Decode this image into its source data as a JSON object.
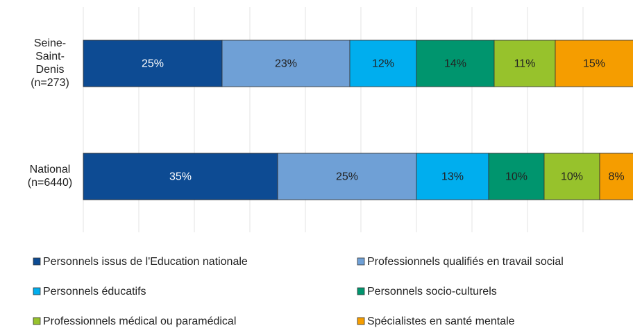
{
  "chart_data": {
    "type": "stacked_bar_horizontal",
    "categories": [
      "Seine-Saint-Denis (n=273)",
      "National (n=6440)"
    ],
    "series": [
      {
        "name": "Personnels issus de l'Education nationale",
        "color": "#0d4b93",
        "values": [
          25,
          35
        ],
        "value_labels": [
          "25%",
          "35%"
        ]
      },
      {
        "name": "Professionnels qualifiés en travail social",
        "color": "#6fa0d6",
        "values": [
          23,
          25
        ],
        "value_labels": [
          "23%",
          "25%"
        ]
      },
      {
        "name": "Personnels éducatifs",
        "color": "#00aeee",
        "values": [
          12,
          13
        ],
        "value_labels": [
          "12%",
          "13%"
        ]
      },
      {
        "name": "Personnels socio-culturels",
        "color": "#00956e",
        "values": [
          14,
          10
        ],
        "value_labels": [
          "14%",
          "10%"
        ]
      },
      {
        "name": "Professionnels médical ou paramédical",
        "color": "#97c22c",
        "values": [
          11,
          10
        ],
        "value_labels": [
          "11%",
          "10%"
        ]
      },
      {
        "name": "Spécialistes en santé mentale",
        "color": "#f59d00",
        "values": [
          15,
          8
        ],
        "value_labels": [
          "15%",
          "8%"
        ]
      }
    ],
    "xlim": [
      0,
      100
    ],
    "xticks": [
      0,
      10,
      20,
      30,
      40,
      50,
      60,
      70,
      80,
      90,
      100
    ],
    "grid": true
  }
}
